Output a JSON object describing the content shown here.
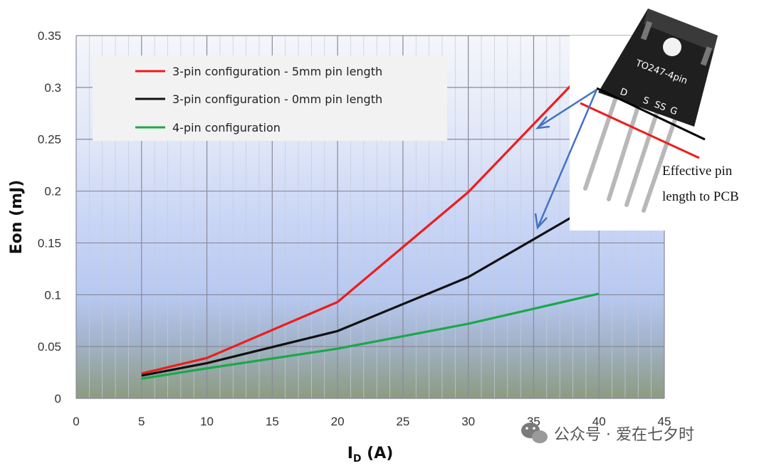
{
  "chart_data": {
    "type": "line",
    "xlabel": "I",
    "xlabel_sub": "D",
    "xlabel_unit": " (A)",
    "ylabel": "Eon (mJ)",
    "xlim": [
      0,
      45
    ],
    "ylim": [
      0,
      0.35
    ],
    "x_ticks": [
      "0",
      "5",
      "10",
      "15",
      "20",
      "25",
      "30",
      "35",
      "40",
      "45"
    ],
    "y_ticks": [
      "0",
      "0.05",
      "0.1",
      "0.15",
      "0.2",
      "0.25",
      "0.3",
      "0.35"
    ],
    "grid": true,
    "legend_position": "top-left",
    "series": [
      {
        "name": "3-pin configuration  - 5mm pin length",
        "color": "#ee1c1c",
        "x": [
          5,
          10,
          20,
          30,
          40
        ],
        "y": [
          0.024,
          0.039,
          0.093,
          0.199,
          0.33
        ]
      },
      {
        "name": "3-pin configuration  - 0mm pin length",
        "color": "#111111",
        "x": [
          5,
          10,
          20,
          30,
          40
        ],
        "y": [
          0.022,
          0.034,
          0.065,
          0.117,
          0.19
        ]
      },
      {
        "name": "4-pin configuration",
        "color": "#1aa84a",
        "x": [
          5,
          10,
          20,
          30,
          40
        ],
        "y": [
          0.019,
          0.029,
          0.048,
          0.072,
          0.101
        ]
      }
    ]
  },
  "annotation": {
    "line1": "Effective pin",
    "line2": "length to PCB",
    "package_name": "TO247-4pin",
    "pin_labels": [
      "D",
      "S",
      "SS",
      "G"
    ]
  },
  "watermark": {
    "text": "公众号 · 爱在七夕时",
    "icon": "wechat-icon"
  }
}
